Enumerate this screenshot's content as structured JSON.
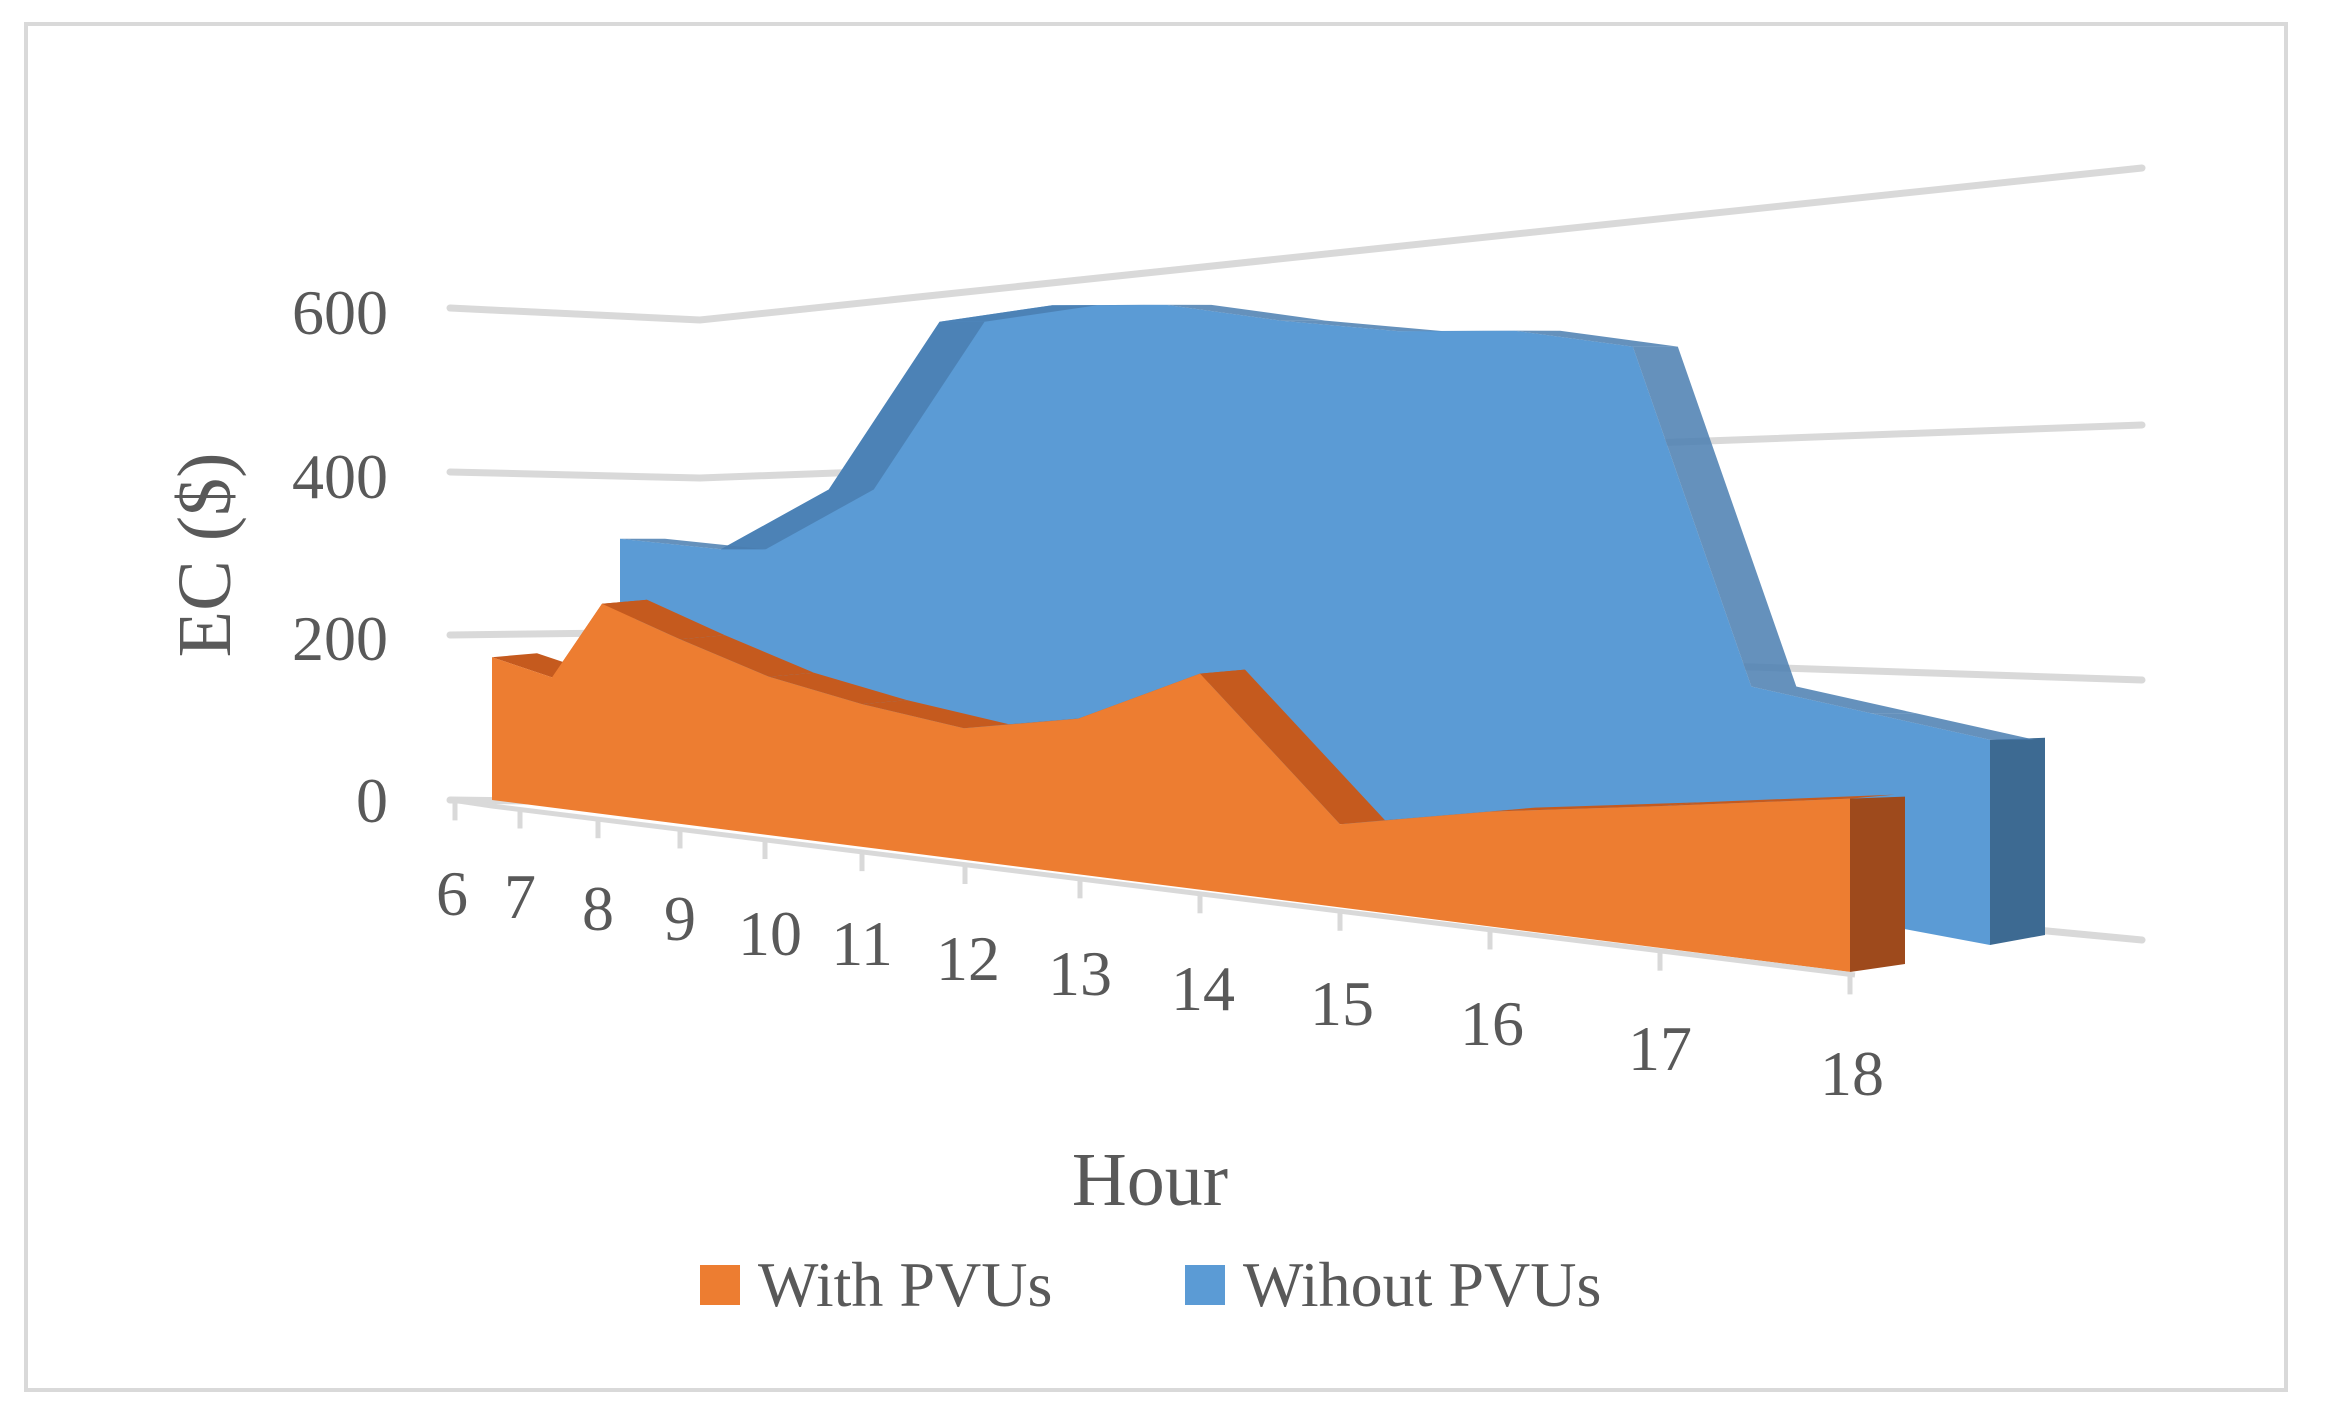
{
  "chart_data": {
    "type": "area",
    "variant": "3d-area",
    "categories": [
      "6",
      "7",
      "8",
      "9",
      "10",
      "11",
      "12",
      "13",
      "14",
      "15",
      "16",
      "17",
      "18"
    ],
    "xlabel": "Hour",
    "ylabel": "EC ($)",
    "ylim": [
      0,
      600
    ],
    "yticks": [
      "0",
      "200",
      "400",
      "600"
    ],
    "grid": true,
    "legend_position": "bottom",
    "series": [
      {
        "name": "With PVUs",
        "color": "#ed7d31",
        "values": [
          140,
          130,
          210,
          185,
          160,
          145,
          135,
          160,
          220,
          90,
          120,
          145,
          170
        ]
      },
      {
        "name": "Wihout PVUs",
        "color": "#5b9bd5",
        "values": [
          140,
          150,
          225,
          400,
          435,
          455,
          460,
          470,
          490,
          495,
          200,
          195,
          190
        ]
      }
    ]
  }
}
